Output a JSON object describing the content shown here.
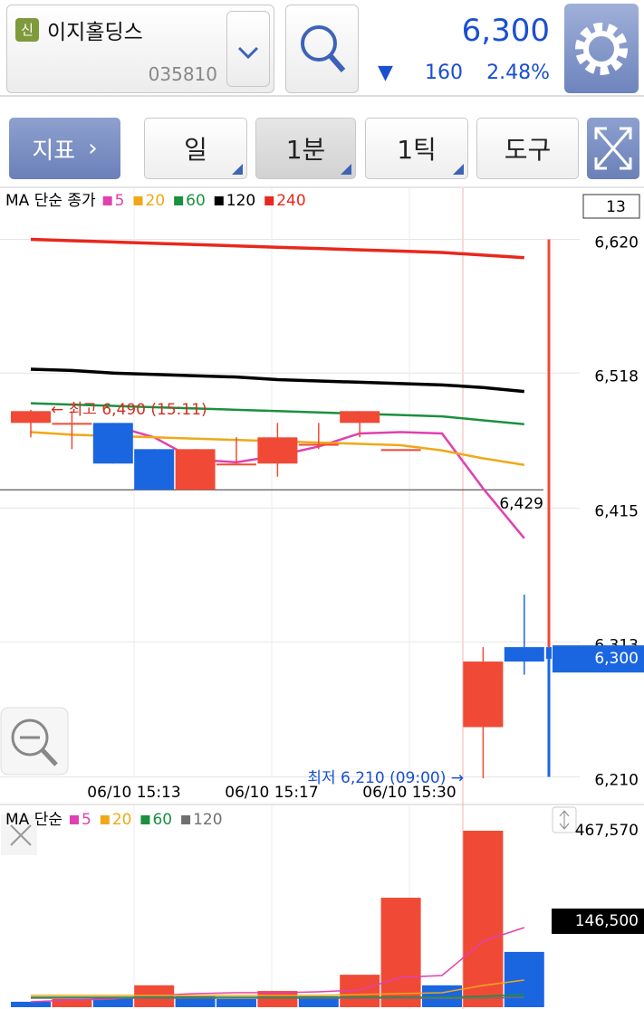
{
  "header": {
    "badge": "신",
    "name": "이지홀딩스",
    "code": "035810",
    "price": "6,300",
    "change": "160",
    "change_pct": "2.48%"
  },
  "toolbar": {
    "indicator": "지표",
    "tabs": [
      "일",
      "1분",
      "1틱",
      "도구"
    ]
  },
  "chart_data": [
    {
      "type": "candlestick",
      "legend_title": "MA 단순 종가",
      "period": "13",
      "open": [
        6480,
        6480,
        6480,
        6460,
        6429,
        6449,
        6449,
        6464,
        6480,
        6460,
        null,
        6248,
        6309
      ],
      "close": [
        6489,
        6480,
        6449,
        6429,
        6460,
        6449,
        6469,
        6464,
        6489,
        6460,
        null,
        6298,
        6298
      ],
      "high": [
        6490,
        6489,
        6480,
        6460,
        6460,
        6469,
        6480,
        6480,
        6489,
        6460,
        null,
        6309,
        6349
      ],
      "low": [
        6469,
        6460,
        6449,
        6429,
        6429,
        6449,
        6439,
        6460,
        6469,
        6460,
        null,
        6209,
        6288
      ],
      "current": {
        "open": 6309,
        "close": 6300,
        "high": 6620,
        "low": 6210
      },
      "up_color": "#f04a36",
      "down_color": "#1a66e0",
      "series": [
        {
          "name": "5",
          "color": "#e040b0",
          "values": [
            null,
            null,
            6478,
            6469,
            6452,
            6450,
            6455,
            6462,
            6472,
            6473,
            6472,
            6430,
            6392
          ]
        },
        {
          "name": "20",
          "color": "#f0a818",
          "values": [
            6473,
            6471,
            6470,
            6469,
            6468,
            6467,
            6466,
            6465,
            6464,
            6463,
            6459,
            6453,
            6448
          ]
        },
        {
          "name": "60",
          "color": "#1a9040",
          "values": [
            6495,
            6494,
            6493,
            6492,
            6491,
            6490,
            6489,
            6488,
            6487,
            6486,
            6485,
            6482,
            6479
          ]
        },
        {
          "name": "120",
          "color": "#000000",
          "values": [
            6521,
            6520,
            6518,
            6517,
            6516,
            6515,
            6513,
            6512,
            6511,
            6510,
            6509,
            6507,
            6504
          ]
        },
        {
          "name": "240",
          "color": "#e8281c",
          "values": [
            6620,
            6619,
            6618,
            6617,
            6616,
            6615,
            6614,
            6613,
            6612,
            6611,
            6610,
            6608,
            6606
          ]
        }
      ],
      "ylim": [
        6209,
        6659
      ],
      "yticks": [
        {
          "value": 6620,
          "label": "6,620"
        },
        {
          "value": 6518,
          "label": "6,518"
        },
        {
          "value": 6415,
          "label": "6,415"
        },
        {
          "value": 6313,
          "label": "6,313"
        },
        {
          "value": 6210,
          "label": "6,210"
        }
      ],
      "x_labels": [
        "06/10 15:13",
        "06/10 15:17",
        "06/10 15:30"
      ],
      "high_note": "← 최고 6,490 (15:11)",
      "low_note": "최저 6,210 (09:00) →",
      "reference_line": {
        "value": 6429,
        "label": "6,429"
      },
      "price_tag": {
        "value": 6300,
        "label": "6,300"
      }
    },
    {
      "type": "bar",
      "legend_title": "MA 단순",
      "values": [
        14400,
        21600,
        24000,
        58000,
        29000,
        21600,
        43000,
        29000,
        86000,
        290000,
        58000,
        467570,
        146500
      ],
      "colors": [
        "#1a66e0",
        "#f04a36",
        "#1a66e0",
        "#f04a36",
        "#1a66e0",
        "#1a66e0",
        "#f04a36",
        "#1a66e0",
        "#f04a36",
        "#f04a36",
        "#1a66e0",
        "#f04a36",
        "#1a66e0"
      ],
      "series": [
        {
          "name": "5",
          "color": "#e040b0",
          "values": [
            14400,
            19200,
            21600,
            31200,
            36000,
            38400,
            38400,
            40800,
            45600,
            79100,
            83900,
            175000,
            211000
          ]
        },
        {
          "name": "20",
          "color": "#f0a818",
          "values": [
            31200,
            31200,
            31200,
            31200,
            31200,
            31200,
            31200,
            31200,
            33600,
            36000,
            38400,
            57500,
            71900
          ]
        },
        {
          "name": "60",
          "color": "#1a9040",
          "values": [
            26400,
            26400,
            26400,
            26400,
            26400,
            26400,
            26400,
            26400,
            26400,
            26400,
            26400,
            28800,
            33600
          ]
        },
        {
          "name": "120",
          "color": "#707070",
          "values": [
            24000,
            24000,
            24000,
            24000,
            24000,
            24000,
            24000,
            24000,
            24000,
            24000,
            24000,
            24000,
            26400
          ]
        }
      ],
      "ylim": [
        0,
        467570
      ],
      "yticks": [
        {
          "value": 467570,
          "label": "467,570"
        }
      ],
      "value_tag": {
        "value": 146500,
        "label": "146,500"
      }
    }
  ]
}
